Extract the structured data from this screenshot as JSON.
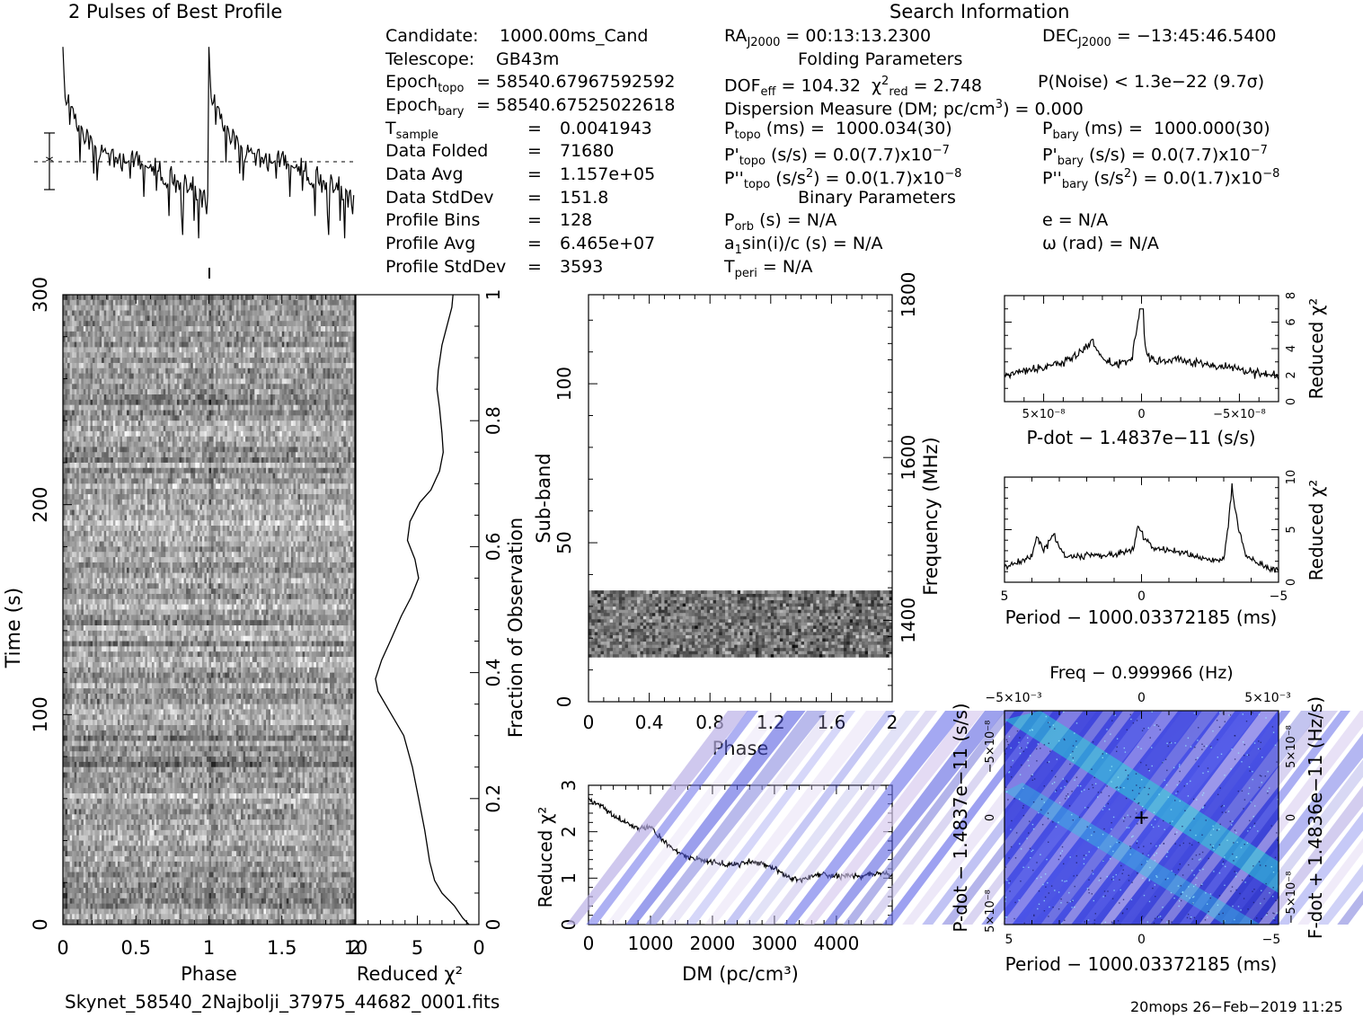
{
  "header": {
    "profile_title": "2 Pulses of Best Profile",
    "search_title": "Search Information",
    "folding_title": "Folding Parameters",
    "binary_title": "Binary Parameters"
  },
  "info_left": [
    {
      "label": "Candidate:",
      "value": "1000.00ms_Cand"
    },
    {
      "label": "Telescope:",
      "value": "GB43m"
    },
    {
      "label": "Epoch_topo",
      "value": "= 58540.67967592592"
    },
    {
      "label": "Epoch_bary",
      "value": "= 58540.67525022618"
    },
    {
      "label": "T_sample",
      "value": "0.0041943"
    },
    {
      "label": "Data Folded",
      "value": "71680"
    },
    {
      "label": "Data Avg",
      "value": "1.157e+05"
    },
    {
      "label": "Data StdDev",
      "value": "151.8"
    },
    {
      "label": "Profile Bins",
      "value": "128"
    },
    {
      "label": "Profile Avg",
      "value": "6.465e+07"
    },
    {
      "label": "Profile StdDev",
      "value": "3593"
    }
  ],
  "info_right": {
    "ra": "RA_J2000 = 00:13:13.2300",
    "dec": "DEC_J2000 = −13:45:46.5400",
    "dof": "DOF_eff = 104.32",
    "chi2": "χ²_red = 2.748",
    "pnoise": "P(Noise) < 1.3e−22 (9.7σ)",
    "dm": "Dispersion Measure (DM; pc/cm³) = 0.000",
    "ptopo": "P_topo (ms) = 1000.034(30)",
    "pbary": "P_bary (ms) = 1000.000(30)",
    "pdtopo": "P'_topo (s/s) = 0.0(7.7)x10⁻⁷",
    "pdbary": "P'_bary (s/s) = 0.0(7.7)x10⁻⁷",
    "pddtopo": "P''_topo (s/s²) = 0.0(1.7)x10⁻⁸",
    "pddbary": "P''_bary (s/s²) = 0.0(1.7)x10⁻⁸",
    "porb": "P_orb (s) = N/A",
    "ecc": "e = N/A",
    "a1sini": "a₁sin(i)/c (s) = N/A",
    "omega": "ω (rad) = N/A",
    "tperi": "T_peri = N/A"
  },
  "footer": {
    "filename": "Skynet_58540_2Najbolji_37975_44682_0001.fits",
    "stamp": "20mops 26−Feb−2019 11:25"
  },
  "chart_data": [
    {
      "id": "profile",
      "type": "line",
      "title": "2 Pulses of Best Profile",
      "xlabel": "",
      "ylabel": "",
      "x_range": [
        0,
        2
      ],
      "bins": 256,
      "description_values": "two identical pulses; sharp peak at phase ~0 and ~1 then decays",
      "peak_phases": [
        0.0,
        1.0
      ]
    },
    {
      "id": "time-phase",
      "type": "heatmap",
      "xlabel": "Phase",
      "ylabel": "Time (s)",
      "x_range": [
        0,
        2
      ],
      "y_range": [
        0,
        300
      ],
      "xticks": [
        "0",
        "0.5",
        "1",
        "1.5",
        "2"
      ],
      "yticks": [
        "0",
        "100",
        "200",
        "300"
      ],
      "colormap": "grayscale"
    },
    {
      "id": "chi2-vs-time",
      "type": "line",
      "xlabel": "Reduced χ²",
      "ylabel": "Fraction of Observation",
      "x_range": [
        10,
        0
      ],
      "y_range": [
        0,
        1
      ],
      "xticks": [
        "10",
        "5",
        "0"
      ],
      "yticks": [
        "0",
        "0.2",
        "0.4",
        "0.6",
        "0.8",
        "1"
      ],
      "points": [
        [
          0.8,
          0.0
        ],
        [
          1.3,
          0.01
        ],
        [
          2.0,
          0.03
        ],
        [
          3.0,
          0.05
        ],
        [
          3.6,
          0.07
        ],
        [
          4.0,
          0.1
        ],
        [
          4.4,
          0.15
        ],
        [
          4.9,
          0.2
        ],
        [
          5.4,
          0.25
        ],
        [
          6.1,
          0.3
        ],
        [
          7.3,
          0.34
        ],
        [
          8.2,
          0.37
        ],
        [
          8.4,
          0.39
        ],
        [
          7.9,
          0.42
        ],
        [
          7.2,
          0.45
        ],
        [
          6.3,
          0.49
        ],
        [
          5.5,
          0.52
        ],
        [
          4.9,
          0.55
        ],
        [
          5.2,
          0.58
        ],
        [
          5.8,
          0.61
        ],
        [
          5.6,
          0.64
        ],
        [
          4.8,
          0.67
        ],
        [
          3.9,
          0.69
        ],
        [
          3.2,
          0.72
        ],
        [
          2.9,
          0.75
        ],
        [
          3.0,
          0.78
        ],
        [
          3.2,
          0.82
        ],
        [
          3.4,
          0.85
        ],
        [
          3.3,
          0.88
        ],
        [
          3.0,
          0.92
        ],
        [
          2.6,
          0.95
        ],
        [
          2.2,
          0.98
        ],
        [
          2.1,
          1.0
        ]
      ]
    },
    {
      "id": "subband-phase",
      "type": "heatmap",
      "xlabel": "Phase",
      "ylabel": "Sub-band",
      "y2label": "Frequency (MHz)",
      "x_range": [
        0,
        2
      ],
      "y_range": [
        0,
        128
      ],
      "y2_range": [
        1300,
        1800
      ],
      "xticks": [
        "0",
        "0.4",
        "0.8",
        "1.2",
        "1.6",
        "2"
      ],
      "yticks": [
        "0",
        "50",
        "100"
      ],
      "y2ticks": [
        "1400",
        "1600",
        "1800"
      ],
      "filled_subbands": [
        14,
        35
      ],
      "colormap": "grayscale"
    },
    {
      "id": "chi2-vs-dm",
      "type": "line",
      "xlabel": "DM (pc/cm³)",
      "ylabel": "Reduced χ²",
      "x_range": [
        0,
        4900
      ],
      "y_range": [
        0,
        3
      ],
      "xticks": [
        "0",
        "1000",
        "2000",
        "3000",
        "4000"
      ],
      "yticks": [
        "0",
        "1",
        "2",
        "3"
      ],
      "points": [
        [
          0,
          2.7
        ],
        [
          200,
          2.55
        ],
        [
          400,
          2.35
        ],
        [
          600,
          2.2
        ],
        [
          800,
          2.05
        ],
        [
          1000,
          2.1
        ],
        [
          1200,
          1.8
        ],
        [
          1400,
          1.6
        ],
        [
          1600,
          1.45
        ],
        [
          1800,
          1.4
        ],
        [
          2000,
          1.35
        ],
        [
          2200,
          1.3
        ],
        [
          2400,
          1.3
        ],
        [
          2600,
          1.35
        ],
        [
          2800,
          1.3
        ],
        [
          3000,
          1.2
        ],
        [
          3200,
          1.05
        ],
        [
          3400,
          0.95
        ],
        [
          3600,
          1.05
        ],
        [
          3800,
          1.1
        ],
        [
          4000,
          1.05
        ],
        [
          4200,
          1.05
        ],
        [
          4400,
          1.05
        ],
        [
          4600,
          1.1
        ],
        [
          4800,
          1.1
        ],
        [
          4900,
          1.05
        ]
      ]
    },
    {
      "id": "chi2-vs-pdot",
      "type": "line",
      "xlabel": "P-dot − 1.4837e−11 (s/s)",
      "ylabel": "Reduced χ²",
      "x_range": [
        7e-08,
        -7e-08
      ],
      "y_range": [
        0,
        8
      ],
      "xticks": [
        "5×10⁻⁸",
        "0",
        "−5×10⁻⁸"
      ],
      "yticks": [
        "0",
        "2",
        "4",
        "6",
        "8"
      ],
      "points": [
        [
          7e-08,
          2.0
        ],
        [
          6e-08,
          2.4
        ],
        [
          5e-08,
          2.5
        ],
        [
          4e-08,
          3.0
        ],
        [
          3.2e-08,
          3.6
        ],
        [
          2.5e-08,
          4.5
        ],
        [
          2e-08,
          3.1
        ],
        [
          1.2e-08,
          2.8
        ],
        [
          5e-09,
          3.2
        ],
        [
          1e-09,
          6.9
        ],
        [
          -3e-09,
          3.4
        ],
        [
          -1e-08,
          2.9
        ],
        [
          -2e-08,
          3.2
        ],
        [
          -3e-08,
          2.9
        ],
        [
          -4e-08,
          2.7
        ],
        [
          -5e-08,
          2.5
        ],
        [
          -6e-08,
          2.2
        ],
        [
          -7e-08,
          1.8
        ]
      ]
    },
    {
      "id": "chi2-vs-period",
      "type": "line",
      "xlabel": "Period − 1000.03372185 (ms)",
      "ylabel": "Reduced χ²",
      "x_range": [
        5,
        -5
      ],
      "y_range": [
        0,
        10
      ],
      "xticks": [
        "5",
        "0",
        "−5"
      ],
      "yticks": [
        "0",
        "5",
        "10"
      ],
      "points": [
        [
          5,
          1.5
        ],
        [
          4.5,
          1.8
        ],
        [
          4,
          2.5
        ],
        [
          3.8,
          4.5
        ],
        [
          3.6,
          3.0
        ],
        [
          3.2,
          4.5
        ],
        [
          2.8,
          2.5
        ],
        [
          2,
          2.5
        ],
        [
          1,
          2.6
        ],
        [
          0.3,
          3.0
        ],
        [
          0.1,
          5.5
        ],
        [
          -0.1,
          4.0
        ],
        [
          -0.4,
          3.3
        ],
        [
          -1,
          3.0
        ],
        [
          -2,
          2.4
        ],
        [
          -3,
          2.0
        ],
        [
          -3.1,
          4.0
        ],
        [
          -3.3,
          9.0
        ],
        [
          -3.5,
          5.5
        ],
        [
          -3.8,
          2.5
        ],
        [
          -4.5,
          1.5
        ],
        [
          -5,
          1.1
        ]
      ]
    },
    {
      "id": "p-pdot",
      "type": "heatmap",
      "title": "Freq − 0.999966 (Hz)",
      "xlabel": "Period − 1000.03372185 (ms)",
      "ylabel": "P-dot − 1.4837e−11 (s/s)",
      "y2label": "F-dot + 1.4836e−11 (Hz/s)",
      "x_range": [
        5,
        -5
      ],
      "y_range": [
        -7e-08,
        7e-08
      ],
      "xticks": [
        "5",
        "0",
        "−5"
      ],
      "x2ticks": [
        "−5×10⁻³",
        "0",
        "5×10⁻³"
      ],
      "yticks": [
        "5×10⁻⁸",
        "0",
        "−5×10⁻⁸"
      ],
      "y2ticks": [
        "−5×10⁻⁸",
        "0",
        "5×10⁻⁸"
      ],
      "best": [
        0,
        0
      ],
      "colormap": "blue-cyan"
    }
  ]
}
